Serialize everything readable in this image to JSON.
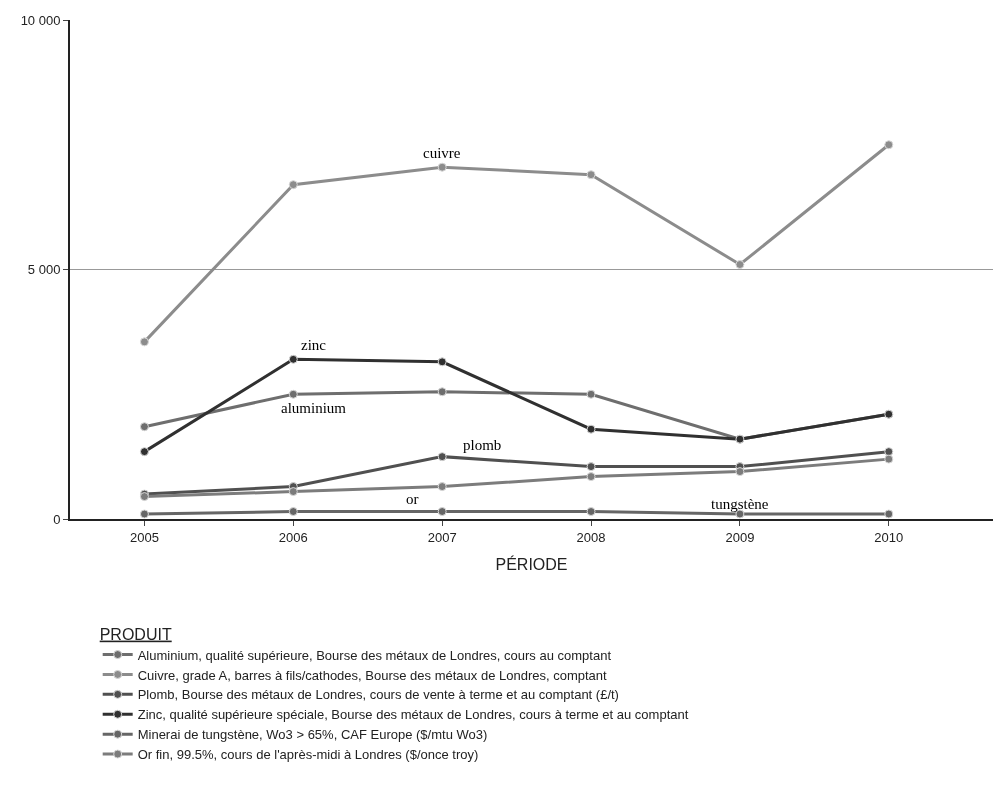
{
  "chart_data": {
    "type": "line",
    "xlabel": "PÉRIODE",
    "legend_title": "PRODUIT",
    "categories": [
      "2005",
      "2006",
      "2007",
      "2008",
      "2009",
      "2010"
    ],
    "series": [
      {
        "name": "Aluminium, qualité supérieure, Bourse des métaux de Londres, cours au comptant",
        "color": "#6e6e6e",
        "values": [
          1850,
          2500,
          2550,
          2500,
          1600,
          2100
        ]
      },
      {
        "name": "Cuivre, grade A, barres à fils/cathodes, Bourse des métaux de Londres, comptant",
        "color": "#8c8c8c",
        "values": [
          3550,
          6700,
          7050,
          6900,
          5100,
          7500
        ]
      },
      {
        "name": "Plomb, Bourse des métaux de Londres, cours de vente à terme et au comptant (£/t)",
        "color": "#505050",
        "values": [
          500,
          650,
          1250,
          1050,
          1050,
          1350
        ]
      },
      {
        "name": "Zinc, qualité supérieure spéciale, Bourse des métaux de Londres, cours à terme et au comptant",
        "color": "#303030",
        "values": [
          1350,
          3200,
          3150,
          1800,
          1600,
          2100
        ]
      },
      {
        "name": "Minerai de tungstène, Wo3 > 65%, CAF Europe ($/mtu Wo3)",
        "color": "#666666",
        "values": [
          100,
          150,
          150,
          150,
          100,
          100
        ]
      },
      {
        "name": "Or fin, 99.5%, cours de l'après-midi à Londres ($/once troy)",
        "color": "#7c7c7c",
        "values": [
          450,
          550,
          650,
          850,
          950,
          1200
        ]
      }
    ],
    "ylim": [
      0,
      10000
    ],
    "yticks": [
      {
        "value": 0,
        "label": "0"
      },
      {
        "value": 5000,
        "label": "5 000"
      },
      {
        "value": 10000,
        "label": "10 000"
      }
    ],
    "grid": "y",
    "legend": "bottom",
    "marker": "circle",
    "line_style": "solid",
    "annotations": [
      {
        "text": "cuivre",
        "x": "2007",
        "y": 7050
      },
      {
        "text": "zinc",
        "x": "2006",
        "y": 3200
      },
      {
        "text": "aluminium",
        "x": "2006",
        "y": 2500
      },
      {
        "text": "plomb",
        "x": "2007",
        "y": 1250
      },
      {
        "text": "or",
        "x": "2007",
        "y": 650
      },
      {
        "text": "tungstène",
        "x": "2009",
        "y": 100
      }
    ]
  }
}
